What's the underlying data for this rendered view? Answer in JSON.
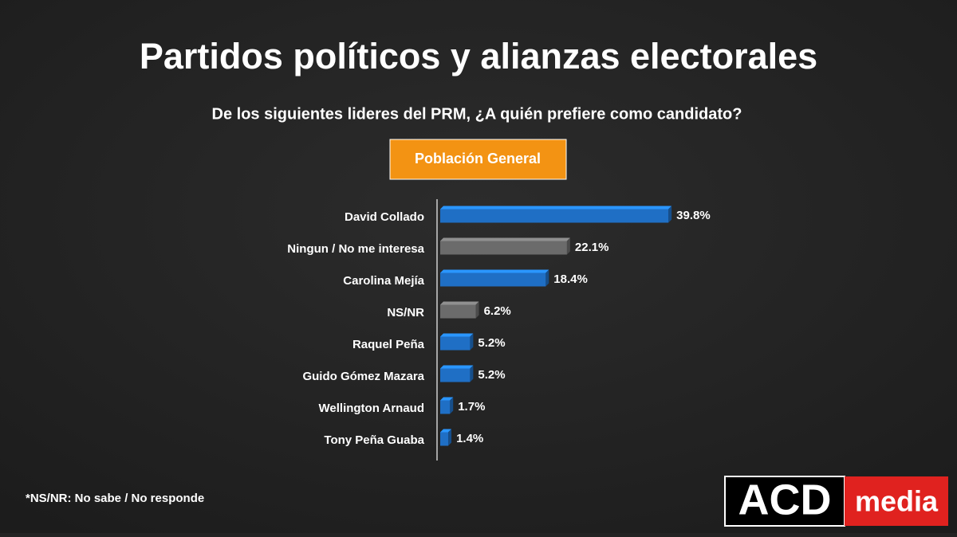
{
  "chart_data": {
    "type": "bar",
    "orientation": "horizontal",
    "title": "Partidos políticos y alianzas electorales",
    "subtitle": "De los siguientes lideres del PRM, ¿A quién prefiere como candidato?",
    "badge": "Población General",
    "categories": [
      "David Collado",
      "Ningun / No me interesa",
      "Carolina Mejía",
      "NS/NR",
      "Raquel Peña",
      "Guido Gómez Mazara",
      "Wellington Arnaud",
      "Tony Peña Guaba"
    ],
    "values": [
      39.8,
      22.1,
      18.4,
      6.2,
      5.2,
      5.2,
      1.7,
      1.4
    ],
    "value_labels": [
      "39.8%",
      "22.1%",
      "18.4%",
      "6.2%",
      "5.2%",
      "5.2%",
      "1.7%",
      "1.4%"
    ],
    "colors": [
      "#1f6fc5",
      "#6b6b6b",
      "#1f6fc5",
      "#6b6b6b",
      "#1f6fc5",
      "#1f6fc5",
      "#1f6fc5",
      "#1f6fc5"
    ],
    "footnote": "*NS/NR: No sabe / No responde",
    "logo": {
      "main": "ACD",
      "accent": "media"
    }
  }
}
